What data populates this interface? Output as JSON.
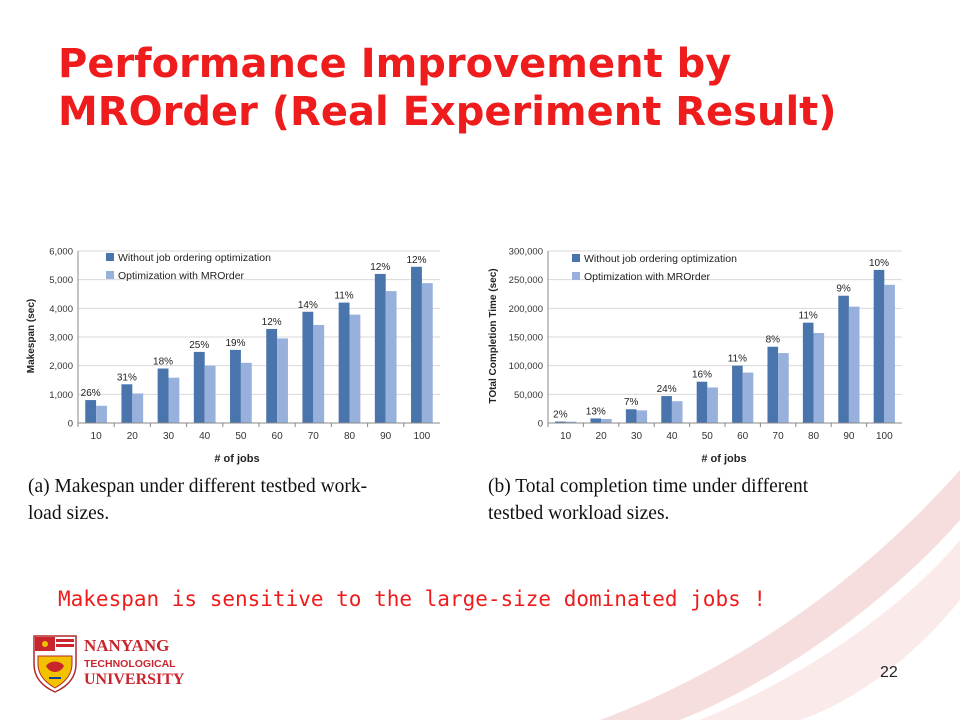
{
  "slide": {
    "title_line1": "Performance Improvement by",
    "title_line2": "MROrder (Real Experiment Result)",
    "takeaway": "Makespan is sensitive to the large-size dominated jobs !",
    "page_number": "22",
    "logo": {
      "line1": "NANYANG",
      "line2": "TECHNOLOGICAL",
      "line3": "UNIVERSITY"
    }
  },
  "colors": {
    "title_red": "#ee1c1c",
    "series_dark": "#4a74ac",
    "series_light": "#97b1dc",
    "swoosh": "#f5d6d6"
  },
  "chart_data": [
    {
      "type": "bar",
      "categories": [
        "10",
        "20",
        "30",
        "40",
        "50",
        "60",
        "70",
        "80",
        "90",
        "100"
      ],
      "series": [
        {
          "name": "Without job ordering optimization",
          "values": [
            800,
            1350,
            1900,
            2480,
            2550,
            3280,
            3880,
            4200,
            5200,
            5450
          ]
        },
        {
          "name": "Optimization with MROrder",
          "values": [
            600,
            1030,
            1580,
            2000,
            2100,
            2950,
            3420,
            3780,
            4600,
            4880
          ]
        }
      ],
      "annotations": [
        "26%",
        "31%",
        "18%",
        "25%",
        "19%",
        "12%",
        "14%",
        "11%",
        "12%",
        "12%"
      ],
      "yticks": [
        "0",
        "1,000",
        "2,000",
        "3,000",
        "4,000",
        "5,000",
        "6,000"
      ],
      "xlabel": "# of jobs",
      "ylabel": "Makespan (sec)",
      "ylim": [
        0,
        6000
      ],
      "grid": true,
      "legend": "top-left",
      "caption_line1": "(a)  Makespan under different testbed work-",
      "caption_line2": "load sizes."
    },
    {
      "type": "bar",
      "categories": [
        "10",
        "20",
        "30",
        "40",
        "50",
        "60",
        "70",
        "80",
        "90",
        "100"
      ],
      "series": [
        {
          "name": "Without job ordering optimization",
          "values": [
            2500,
            8000,
            24000,
            47000,
            72000,
            100000,
            133000,
            175000,
            222000,
            267000
          ]
        },
        {
          "name": "Optimization with MROrder",
          "values": [
            2400,
            7000,
            22000,
            38000,
            62000,
            88000,
            122000,
            157000,
            203000,
            241000
          ]
        }
      ],
      "annotations": [
        "2%",
        "13%",
        "7%",
        "24%",
        "16%",
        "11%",
        "8%",
        "11%",
        "9%",
        "10%"
      ],
      "yticks": [
        "0",
        "50,000",
        "100,000",
        "150,000",
        "200,000",
        "250,000",
        "300,000"
      ],
      "xlabel": "# of jobs",
      "ylabel": "TOtal Completion Time (sec)",
      "ylim": [
        0,
        300000
      ],
      "grid": true,
      "legend": "top-left",
      "caption_line1": "(b)   Total completion time under different",
      "caption_line2": "testbed workload sizes."
    }
  ]
}
